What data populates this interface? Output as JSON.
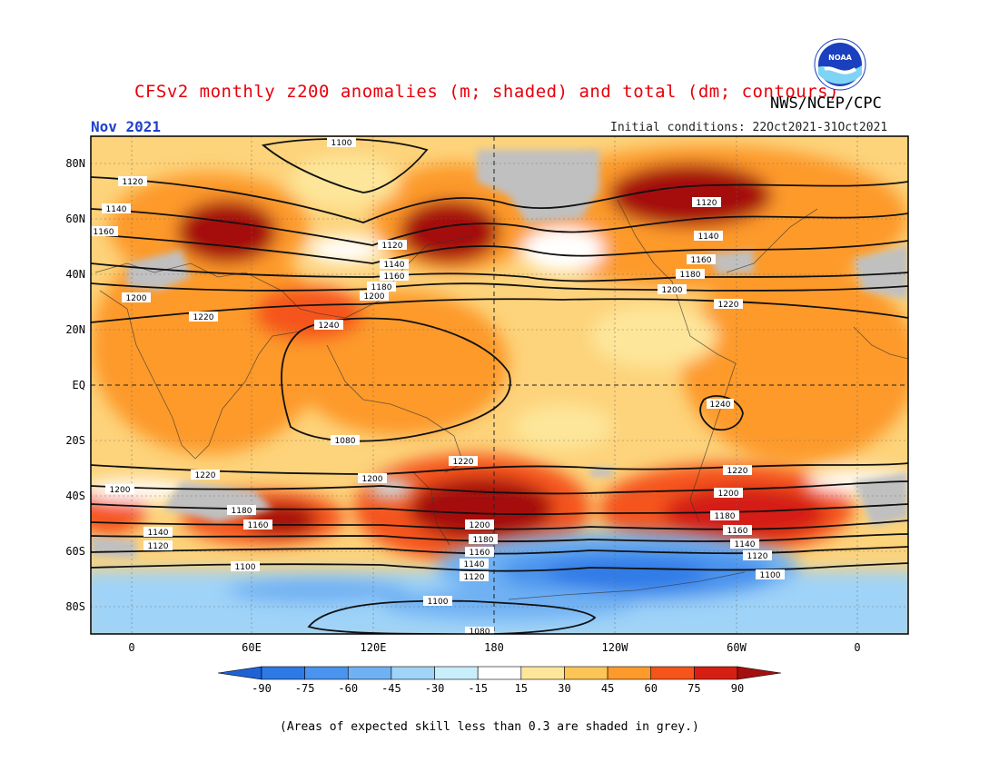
{
  "header": {
    "title": "CFSv2 monthly z200 anomalies (m; shaded) and total (dm; contours)",
    "agency": "NWS/NCEP/CPC",
    "period": "Nov 2021",
    "initial_conditions": "Initial conditions: 22Oct2021-31Oct2021",
    "logo_text": "NOAA"
  },
  "map": {
    "lat_labels": [
      "80N",
      "60N",
      "40N",
      "20N",
      "EQ",
      "20S",
      "40S",
      "60S",
      "80S"
    ],
    "lon_labels": [
      "0",
      "60E",
      "120E",
      "180",
      "120W",
      "60W",
      "0"
    ],
    "contour_labels": [
      "1100",
      "1120",
      "1140",
      "1160",
      "1200",
      "1120",
      "1140",
      "1160",
      "1180",
      "1200",
      "1220",
      "1240",
      "1120",
      "1140",
      "1160",
      "1180",
      "1200",
      "1220",
      "1240",
      "1220",
      "1200",
      "1200",
      "1180",
      "1160",
      "1140",
      "1120",
      "1100",
      "1220",
      "1200",
      "1180",
      "1160",
      "1140",
      "1120",
      "1100",
      "1080",
      "1080",
      "1220",
      "1200",
      "1180",
      "1160",
      "1140",
      "1120",
      "1100"
    ],
    "colors": {
      "land_grey": "#c0c0c0",
      "background_warm": "#fdd37b"
    }
  },
  "colorbar": {
    "ticks": [
      "-90",
      "-75",
      "-60",
      "-45",
      "-30",
      "-15",
      "15",
      "30",
      "45",
      "60",
      "75",
      "90"
    ],
    "colors": [
      "#1e62d6",
      "#2d79e6",
      "#4a93ee",
      "#6fb1f3",
      "#9fd3f8",
      "#c8eefc",
      "#ffffff",
      "#fde69a",
      "#fdc456",
      "#fd9a2c",
      "#f5541a",
      "#d51f12",
      "#a50f0f"
    ]
  },
  "footnote": "(Areas of expected skill less than 0.3 are shaded in grey.)"
}
